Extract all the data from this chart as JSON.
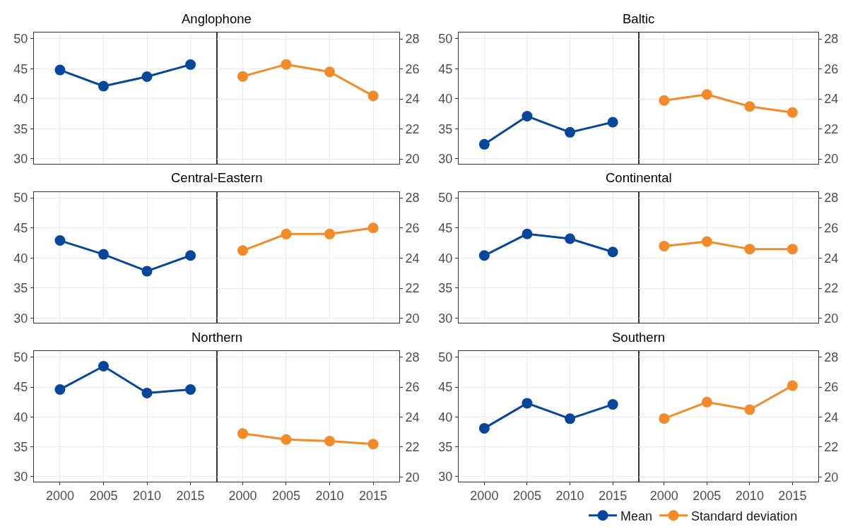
{
  "chart_data": [
    {
      "type": "line",
      "title": "Anglophone",
      "x": [
        2000,
        2005,
        2010,
        2015
      ],
      "xlim": [
        1997,
        2018
      ],
      "xticks": [
        2000,
        2005,
        2010,
        2015
      ],
      "ylim": [
        29.2,
        51.0
      ],
      "yticks": [
        30,
        35,
        40,
        45,
        50
      ],
      "grid": true,
      "marker": "circle",
      "tick_labels": "y",
      "series": [
        {
          "color": "#06469b",
          "values": [
            44.8,
            42.1,
            43.7,
            45.7
          ]
        }
      ]
    },
    {
      "type": "line",
      "x": [
        2000,
        2005,
        2010,
        2015
      ],
      "xlim": [
        1997,
        2018
      ],
      "xticks": [
        2000,
        2005,
        2010,
        2015
      ],
      "ylim": [
        19.7,
        28.4
      ],
      "yticks": [
        20,
        22,
        24,
        26,
        28
      ],
      "grid": true,
      "marker": "circle",
      "tick_labels": "y",
      "series": [
        {
          "color": "#f48a27",
          "values": [
            25.5,
            26.3,
            25.8,
            24.2
          ]
        }
      ]
    },
    {
      "type": "line",
      "title": "Baltic",
      "x": [
        2000,
        2005,
        2010,
        2015
      ],
      "xlim": [
        1997,
        2018
      ],
      "xticks": [
        2000,
        2005,
        2010,
        2015
      ],
      "ylim": [
        29.2,
        51.0
      ],
      "yticks": [
        30,
        35,
        40,
        45,
        50
      ],
      "grid": true,
      "marker": "circle",
      "tick_labels": "y",
      "series": [
        {
          "color": "#06469b",
          "values": [
            32.4,
            37.1,
            34.4,
            36.1
          ]
        }
      ]
    },
    {
      "type": "line",
      "x": [
        2000,
        2005,
        2010,
        2015
      ],
      "xlim": [
        1997,
        2018
      ],
      "xticks": [
        2000,
        2005,
        2010,
        2015
      ],
      "ylim": [
        19.7,
        28.4
      ],
      "yticks": [
        20,
        22,
        24,
        26,
        28
      ],
      "grid": true,
      "marker": "circle",
      "tick_labels": "y",
      "series": [
        {
          "color": "#f48a27",
          "values": [
            23.9,
            24.3,
            23.5,
            23.1
          ]
        }
      ]
    },
    {
      "type": "line",
      "title": "Central-Eastern",
      "x": [
        2000,
        2005,
        2010,
        2015
      ],
      "xlim": [
        1997,
        2018
      ],
      "xticks": [
        2000,
        2005,
        2010,
        2015
      ],
      "ylim": [
        29.2,
        51.0
      ],
      "yticks": [
        30,
        35,
        40,
        45,
        50
      ],
      "grid": true,
      "marker": "circle",
      "tick_labels": "y",
      "series": [
        {
          "color": "#06469b",
          "values": [
            42.9,
            40.6,
            37.8,
            40.4
          ]
        }
      ]
    },
    {
      "type": "line",
      "x": [
        2000,
        2005,
        2010,
        2015
      ],
      "xlim": [
        1997,
        2018
      ],
      "xticks": [
        2000,
        2005,
        2010,
        2015
      ],
      "ylim": [
        19.7,
        28.4
      ],
      "yticks": [
        20,
        22,
        24,
        26,
        28
      ],
      "grid": true,
      "marker": "circle",
      "tick_labels": "y",
      "series": [
        {
          "color": "#f48a27",
          "values": [
            24.5,
            25.6,
            25.6,
            26.0
          ]
        }
      ]
    },
    {
      "type": "line",
      "title": "Continental",
      "x": [
        2000,
        2005,
        2010,
        2015
      ],
      "xlim": [
        1997,
        2018
      ],
      "xticks": [
        2000,
        2005,
        2010,
        2015
      ],
      "ylim": [
        29.2,
        51.0
      ],
      "yticks": [
        30,
        35,
        40,
        45,
        50
      ],
      "grid": true,
      "marker": "circle",
      "tick_labels": "y",
      "series": [
        {
          "color": "#06469b",
          "values": [
            40.4,
            44.0,
            43.2,
            41.0
          ]
        }
      ]
    },
    {
      "type": "line",
      "x": [
        2000,
        2005,
        2010,
        2015
      ],
      "xlim": [
        1997,
        2018
      ],
      "xticks": [
        2000,
        2005,
        2010,
        2015
      ],
      "ylim": [
        19.7,
        28.4
      ],
      "yticks": [
        20,
        22,
        24,
        26,
        28
      ],
      "grid": true,
      "marker": "circle",
      "tick_labels": "y",
      "series": [
        {
          "color": "#f48a27",
          "values": [
            24.8,
            25.1,
            24.6,
            24.6
          ]
        }
      ]
    },
    {
      "type": "line",
      "title": "Northern",
      "x": [
        2000,
        2005,
        2010,
        2015
      ],
      "xlim": [
        1997,
        2018
      ],
      "xticks": [
        2000,
        2005,
        2010,
        2015
      ],
      "ylim": [
        29.2,
        51.0
      ],
      "yticks": [
        30,
        35,
        40,
        45,
        50
      ],
      "grid": true,
      "marker": "circle",
      "series": [
        {
          "color": "#06469b",
          "values": [
            44.6,
            48.5,
            44.0,
            44.6
          ]
        }
      ]
    },
    {
      "type": "line",
      "x": [
        2000,
        2005,
        2010,
        2015
      ],
      "xlim": [
        1997,
        2018
      ],
      "xticks": [
        2000,
        2005,
        2010,
        2015
      ],
      "ylim": [
        19.7,
        28.4
      ],
      "yticks": [
        20,
        22,
        24,
        26,
        28
      ],
      "grid": true,
      "marker": "circle",
      "series": [
        {
          "color": "#f48a27",
          "values": [
            22.9,
            22.5,
            22.4,
            22.2
          ]
        }
      ]
    },
    {
      "type": "line",
      "title": "Southern",
      "x": [
        2000,
        2005,
        2010,
        2015
      ],
      "xlim": [
        1997,
        2018
      ],
      "xticks": [
        2000,
        2005,
        2010,
        2015
      ],
      "ylim": [
        29.2,
        51.0
      ],
      "yticks": [
        30,
        35,
        40,
        45,
        50
      ],
      "grid": true,
      "marker": "circle",
      "legend": "bottom right",
      "series": [
        {
          "name": "Mean",
          "color": "#06469b",
          "values": [
            38.1,
            42.3,
            39.7,
            42.1
          ]
        }
      ]
    },
    {
      "type": "line",
      "x": [
        2000,
        2005,
        2010,
        2015
      ],
      "xlim": [
        1997,
        2018
      ],
      "xticks": [
        2000,
        2005,
        2010,
        2015
      ],
      "ylim": [
        19.7,
        28.4
      ],
      "yticks": [
        20,
        22,
        24,
        26,
        28
      ],
      "grid": true,
      "marker": "circle",
      "legend": "bottom right",
      "series": [
        {
          "name": "Standard deviation",
          "color": "#f48a27",
          "values": [
            23.9,
            25.0,
            24.5,
            26.1
          ]
        }
      ]
    }
  ]
}
